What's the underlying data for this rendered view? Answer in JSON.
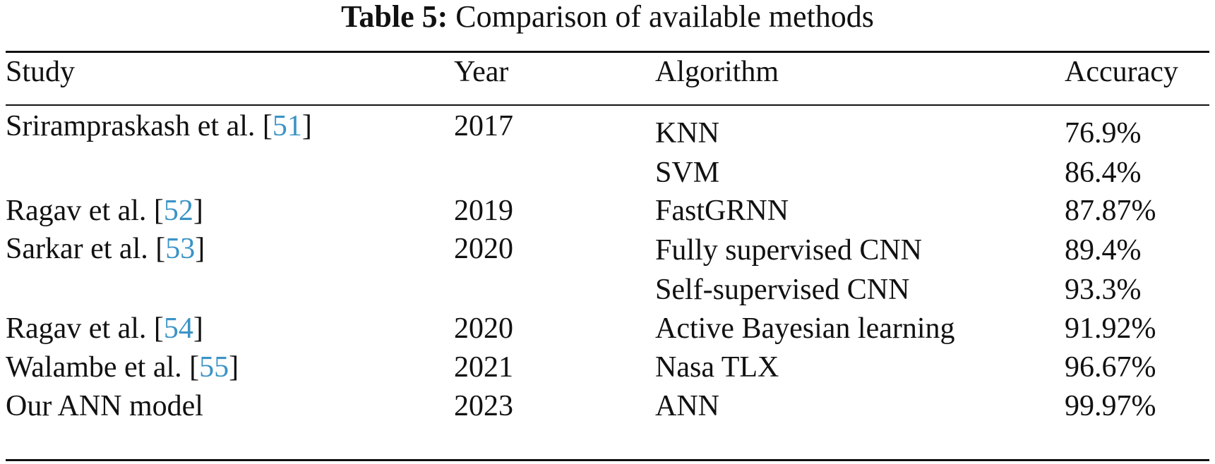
{
  "caption": {
    "label": "Table 5:",
    "text": "Comparison of available methods"
  },
  "table": {
    "headers": {
      "study": "Study",
      "year": "Year",
      "algorithm": "Algorithm",
      "accuracy": "Accuracy"
    },
    "rows": [
      {
        "study": "Srirampraskash et al. [",
        "ref": "51",
        "close": "]",
        "year": "2017",
        "algorithm": "KNN",
        "accuracy": "76.9%"
      },
      {
        "study": "",
        "ref": "",
        "close": "",
        "year": "",
        "algorithm": "SVM",
        "accuracy": "86.4%"
      },
      {
        "study": "Ragav et al. [",
        "ref": "52",
        "close": "]",
        "year": "2019",
        "algorithm": "FastGRNN",
        "accuracy": "87.87%"
      },
      {
        "study": "Sarkar et al. [",
        "ref": "53",
        "close": "]",
        "year": "2020",
        "algorithm": "Fully supervised CNN",
        "accuracy": "89.4%"
      },
      {
        "study": "",
        "ref": "",
        "close": "",
        "year": "",
        "algorithm": "Self-supervised CNN",
        "accuracy": "93.3%"
      },
      {
        "study": "Ragav et al. [",
        "ref": "54",
        "close": "]",
        "year": "2020",
        "algorithm": "Active Bayesian learning",
        "accuracy": "91.92%"
      },
      {
        "study": "Walambe et al. [",
        "ref": "55",
        "close": "]",
        "year": "2021",
        "algorithm": "Nasa TLX",
        "accuracy": "96.67%"
      },
      {
        "study": "Our ANN model",
        "ref": "",
        "close": "",
        "year": "2023",
        "algorithm": "ANN",
        "accuracy": "99.97%"
      }
    ]
  },
  "colors": {
    "text": "#111111",
    "reference_link": "#3a93c6"
  }
}
